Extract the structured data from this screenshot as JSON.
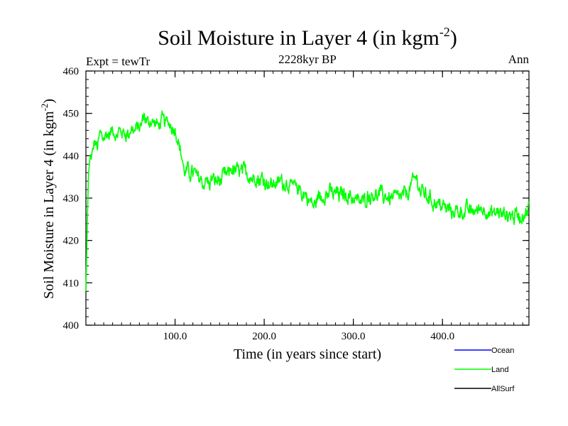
{
  "chart_data": {
    "type": "line",
    "title": "Soil Moisture in Layer 4 (in kgm",
    "title_sup": "-2",
    "title_close": ")",
    "subtitle": "2228kyr BP",
    "left_label": "Expt = tewTr",
    "right_label": "Ann",
    "xlabel": "Time (in years since start)",
    "ylabel": "Soil Moisture in Layer 4 (in kgm",
    "ylabel_sup": "-2",
    "ylabel_close": ")",
    "xlim": [
      0,
      497
    ],
    "ylim": [
      400,
      460
    ],
    "xticks": [
      100,
      200,
      300,
      400
    ],
    "xtick_labels": [
      "100.0",
      "200.0",
      "300.0",
      "400.0"
    ],
    "yticks": [
      400,
      410,
      420,
      430,
      440,
      450,
      460
    ],
    "ytick_labels": [
      "400",
      "410",
      "420",
      "430",
      "440",
      "450",
      "460"
    ],
    "legend_position": "bottom-right, below plot",
    "series": [
      {
        "name": "Ocean",
        "color": "#0000ff",
        "values": []
      },
      {
        "name": "Land",
        "color": "#00ff00",
        "keypoints": [
          [
            0,
            408
          ],
          [
            1,
            418
          ],
          [
            2,
            428
          ],
          [
            3,
            436
          ],
          [
            5,
            440
          ],
          [
            8,
            441
          ],
          [
            10,
            443
          ],
          [
            13,
            442
          ],
          [
            16,
            445
          ],
          [
            20,
            444
          ],
          [
            25,
            445
          ],
          [
            30,
            446
          ],
          [
            35,
            445
          ],
          [
            40,
            446
          ],
          [
            45,
            445
          ],
          [
            50,
            446
          ],
          [
            55,
            446
          ],
          [
            60,
            447
          ],
          [
            65,
            449
          ],
          [
            70,
            448
          ],
          [
            75,
            448
          ],
          [
            80,
            447
          ],
          [
            85,
            448
          ],
          [
            90,
            448
          ],
          [
            95,
            447
          ],
          [
            100,
            446
          ],
          [
            103,
            444
          ],
          [
            106,
            441
          ],
          [
            109,
            438
          ],
          [
            112,
            436
          ],
          [
            118,
            436
          ],
          [
            125,
            435
          ],
          [
            130,
            434
          ],
          [
            135,
            434
          ],
          [
            140,
            434
          ],
          [
            145,
            434
          ],
          [
            150,
            434
          ],
          [
            155,
            435
          ],
          [
            160,
            436
          ],
          [
            165,
            437
          ],
          [
            170,
            436
          ],
          [
            175,
            436
          ],
          [
            180,
            436
          ],
          [
            185,
            435
          ],
          [
            190,
            435
          ],
          [
            200,
            434
          ],
          [
            210,
            433
          ],
          [
            220,
            434
          ],
          [
            230,
            433
          ],
          [
            240,
            432
          ],
          [
            250,
            430
          ],
          [
            255,
            428
          ],
          [
            260,
            430
          ],
          [
            270,
            431
          ],
          [
            280,
            431
          ],
          [
            290,
            431
          ],
          [
            300,
            430
          ],
          [
            310,
            429
          ],
          [
            320,
            431
          ],
          [
            330,
            431
          ],
          [
            340,
            430
          ],
          [
            350,
            430
          ],
          [
            360,
            431
          ],
          [
            365,
            433
          ],
          [
            370,
            435
          ],
          [
            375,
            432
          ],
          [
            380,
            431
          ],
          [
            390,
            429
          ],
          [
            400,
            428
          ],
          [
            410,
            427
          ],
          [
            420,
            427
          ],
          [
            430,
            427
          ],
          [
            440,
            427
          ],
          [
            445,
            428
          ],
          [
            450,
            427
          ],
          [
            455,
            426
          ],
          [
            460,
            427
          ],
          [
            470,
            426
          ],
          [
            480,
            426
          ],
          [
            490,
            426
          ],
          [
            497,
            428
          ]
        ]
      },
      {
        "name": "AllSurf",
        "color": "#000000",
        "values": []
      }
    ]
  }
}
